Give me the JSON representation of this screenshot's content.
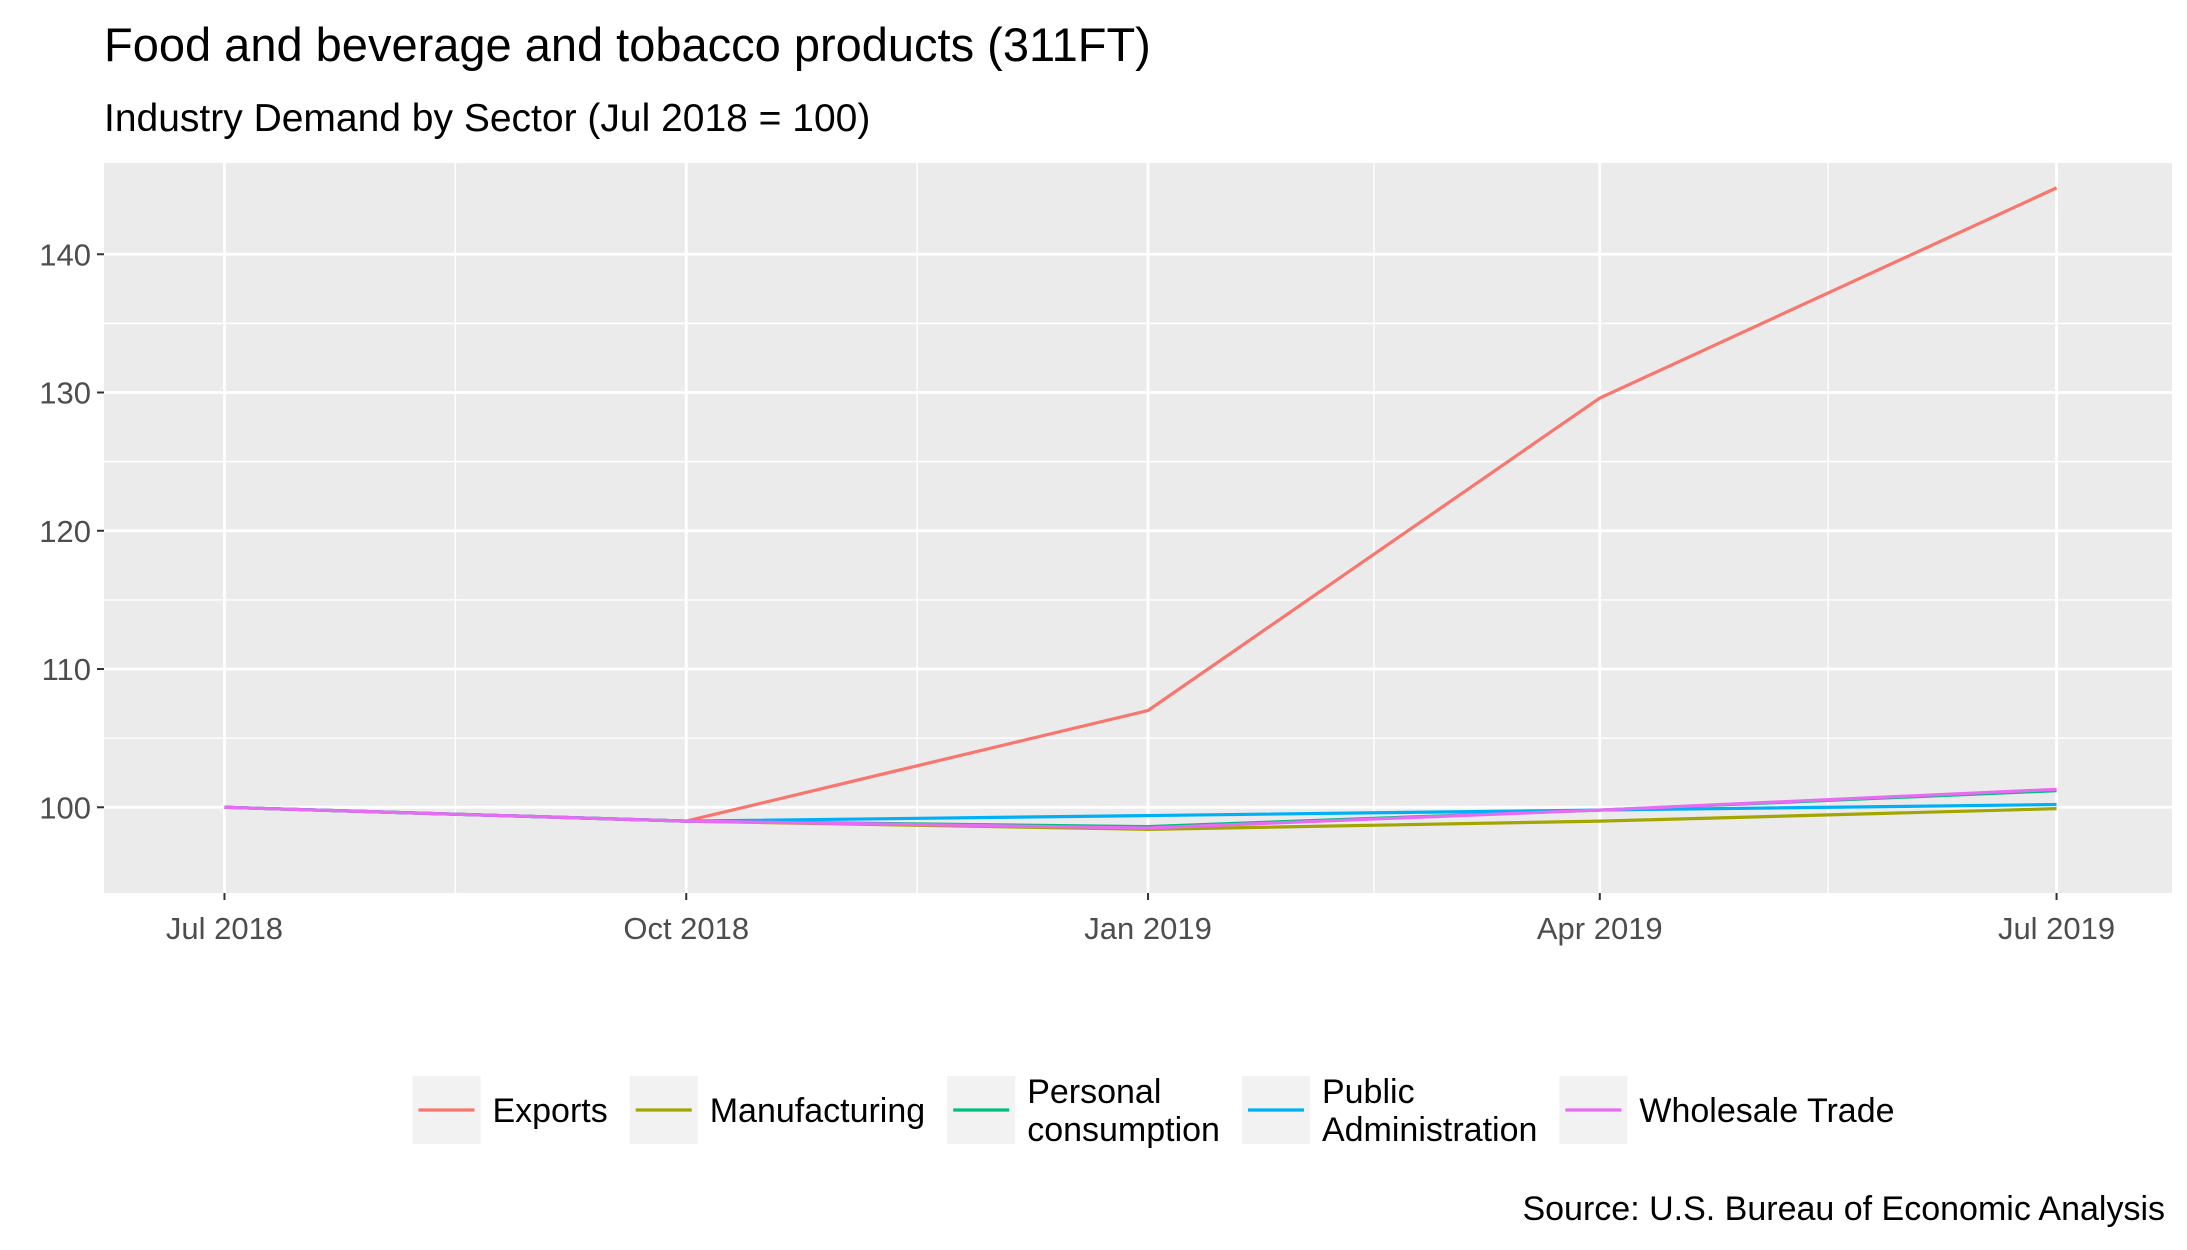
{
  "chart_data": {
    "type": "line",
    "title": "Food and beverage and tobacco products (311FT)",
    "subtitle": "Industry Demand by Sector (Jul 2018 = 100)",
    "caption": "Source: U.S. Bureau of Economic Analysis",
    "xlabel": "",
    "ylabel": "",
    "x": [
      "2018-07-01",
      "2018-10-01",
      "2019-01-01",
      "2019-04-01",
      "2019-07-01"
    ],
    "x_ticks": [
      {
        "value": "2018-07-01",
        "label": "Jul 2018"
      },
      {
        "value": "2018-10-01",
        "label": "Oct 2018"
      },
      {
        "value": "2019-01-01",
        "label": "Jan 2019"
      },
      {
        "value": "2019-04-01",
        "label": "Apr 2019"
      },
      {
        "value": "2019-07-01",
        "label": "Jul 2019"
      }
    ],
    "y_ticks": [
      100,
      110,
      120,
      130,
      140
    ],
    "ylim": [
      93.8,
      146.6
    ],
    "xlim": [
      "2018-06-07",
      "2019-07-24"
    ],
    "grid": true,
    "legend_position": "bottom",
    "series": [
      {
        "name": "Exports",
        "color": "#F8766D",
        "values": [
          100,
          99.0,
          107.0,
          129.6,
          144.8
        ]
      },
      {
        "name": "Manufacturing",
        "color": "#A3A500",
        "values": [
          100,
          99.0,
          98.4,
          99.0,
          99.9
        ]
      },
      {
        "name": "Personal consumption",
        "color": "#00BF7D",
        "values": [
          100,
          99.0,
          98.6,
          99.8,
          101.2
        ]
      },
      {
        "name": "Public Administration",
        "color": "#00B0F6",
        "values": [
          100,
          99.0,
          99.4,
          99.8,
          100.2
        ]
      },
      {
        "name": "Wholesale Trade",
        "color": "#E76BF3",
        "values": [
          100,
          99.0,
          98.5,
          99.8,
          101.3
        ]
      }
    ],
    "legend_entries": [
      {
        "lines": [
          "Exports"
        ]
      },
      {
        "lines": [
          "Manufacturing"
        ]
      },
      {
        "lines": [
          "Personal",
          "consumption"
        ]
      },
      {
        "lines": [
          "Public",
          "Administration"
        ]
      },
      {
        "lines": [
          "Wholesale Trade"
        ]
      }
    ]
  }
}
